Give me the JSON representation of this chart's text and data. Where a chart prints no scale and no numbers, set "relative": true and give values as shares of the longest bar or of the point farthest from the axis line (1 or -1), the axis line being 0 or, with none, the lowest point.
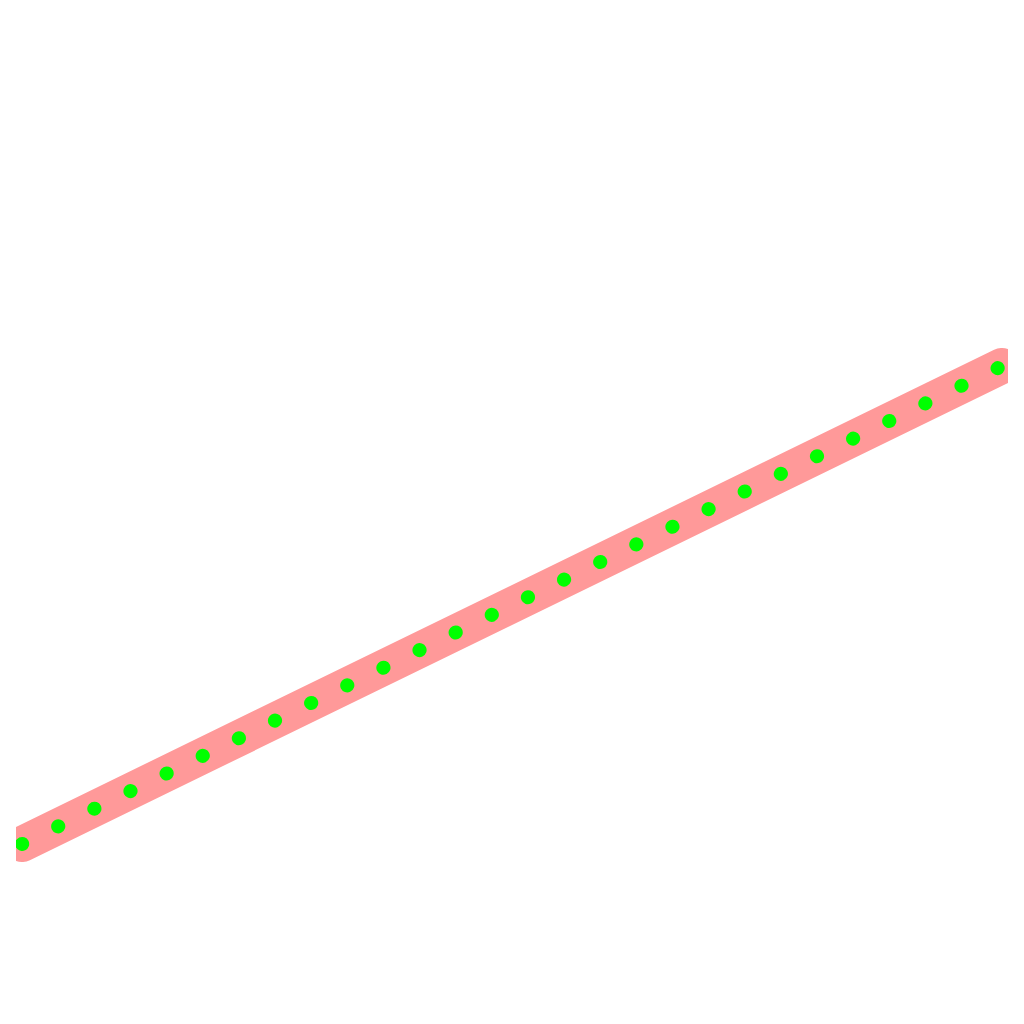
{
  "chart_data": {
    "type": "line",
    "relative": true,
    "categories": [
      null,
      null
    ],
    "marker": "none",
    "series": [
      {
        "color": "#ff9999",
        "values": [
          0,
          1
        ],
        "line_style": "solid"
      },
      {
        "color": "#00ff00",
        "values": [
          0,
          1
        ],
        "line_style": "dotted"
      }
    ]
  }
}
